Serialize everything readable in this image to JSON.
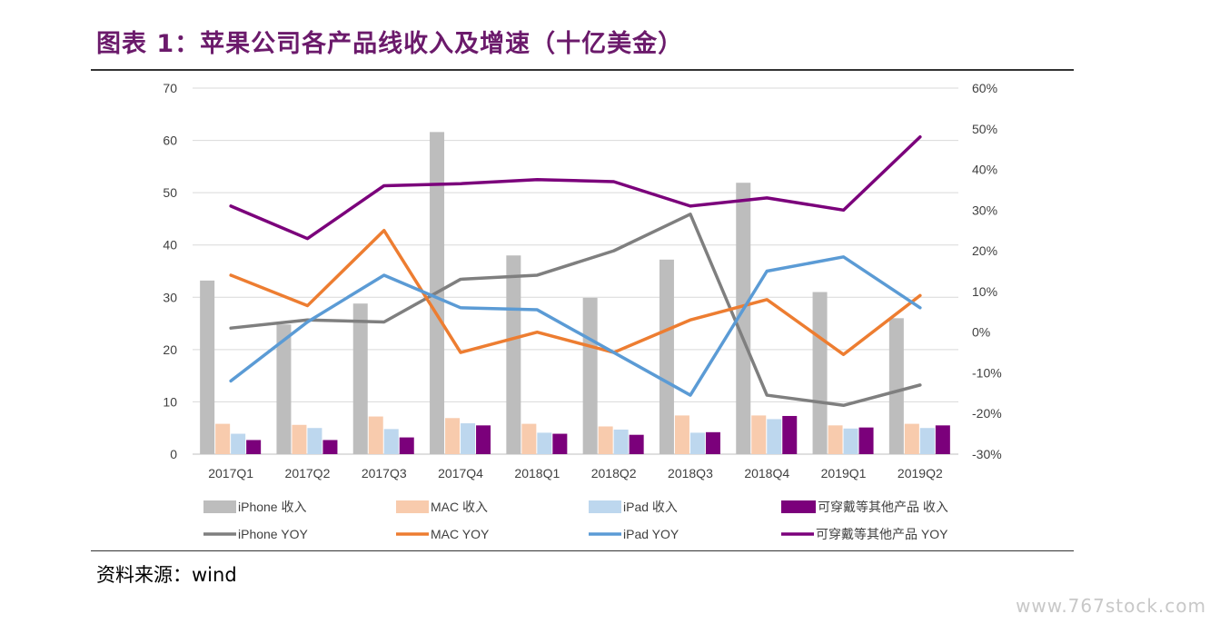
{
  "title": "图表 1：苹果公司各产品线收入及增速（十亿美金）",
  "source": "资料来源：wind",
  "watermark": "www.767stock.com",
  "colors": {
    "iphone_bar": "#bdbdbd",
    "mac_bar": "#f8cbad",
    "ipad_bar": "#bdd7ee",
    "wear_bar": "#7b007b",
    "iphone_line": "#7f7f7f",
    "mac_line": "#ed7d31",
    "ipad_line": "#5b9bd5",
    "wear_line": "#7b007b"
  },
  "chart_data": {
    "type": "bar",
    "categories": [
      "2017Q1",
      "2017Q2",
      "2017Q3",
      "2017Q4",
      "2018Q1",
      "2018Q2",
      "2018Q3",
      "2018Q4",
      "2019Q1",
      "2019Q2"
    ],
    "ylim": [
      0,
      70
    ],
    "yticks": [
      "0",
      "10",
      "20",
      "30",
      "40",
      "50",
      "60",
      "70"
    ],
    "y2lim": [
      -0.3,
      0.6
    ],
    "y2ticks": [
      "-30%",
      "-20%",
      "-10%",
      "0%",
      "10%",
      "20%",
      "30%",
      "40%",
      "50%",
      "60%"
    ],
    "grid": true,
    "legend_position": "bottom",
    "bar_series": [
      {
        "name": "iPhone 收入",
        "values": [
          33.2,
          24.8,
          28.8,
          61.6,
          38.0,
          29.9,
          37.2,
          51.9,
          31.0,
          26.0
        ]
      },
      {
        "name": "MAC 收入",
        "values": [
          5.8,
          5.6,
          7.2,
          6.9,
          5.8,
          5.3,
          7.4,
          7.4,
          5.5,
          5.8
        ]
      },
      {
        "name": "iPad 收入",
        "values": [
          3.9,
          5.0,
          4.8,
          5.9,
          4.1,
          4.7,
          4.1,
          6.7,
          4.9,
          5.0
        ]
      },
      {
        "name": "可穿戴等其他产品 收入",
        "values": [
          2.7,
          2.7,
          3.2,
          5.5,
          3.9,
          3.7,
          4.2,
          7.3,
          5.1,
          5.5
        ]
      }
    ],
    "line_series": [
      {
        "name": "iPhone YOY",
        "values": [
          0.01,
          0.03,
          0.025,
          0.13,
          0.14,
          0.2,
          0.29,
          -0.155,
          -0.18,
          -0.13
        ]
      },
      {
        "name": "MAC YOY",
        "values": [
          0.14,
          0.065,
          0.25,
          -0.05,
          0.0,
          -0.05,
          0.03,
          0.08,
          -0.055,
          0.09
        ]
      },
      {
        "name": "iPad YOY",
        "values": [
          -0.12,
          0.025,
          0.14,
          0.06,
          0.055,
          -0.05,
          -0.155,
          0.15,
          0.185,
          0.06
        ]
      },
      {
        "name": "可穿戴等其他产品 YOY",
        "values": [
          0.31,
          0.23,
          0.36,
          0.365,
          0.375,
          0.37,
          0.31,
          0.33,
          0.3,
          0.48
        ]
      }
    ]
  }
}
